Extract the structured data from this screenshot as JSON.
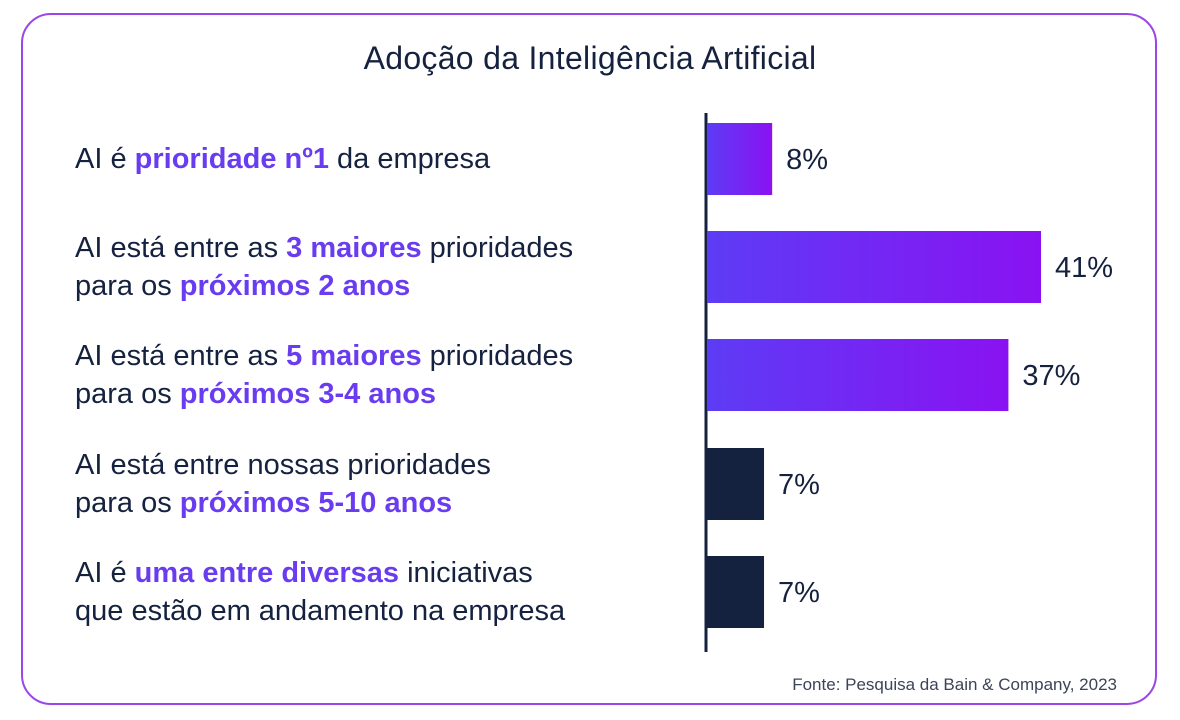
{
  "chart_data": {
    "type": "bar",
    "orientation": "horizontal",
    "title": "Adoção da Inteligência Artificial",
    "categories": [
      [
        {
          "text": "AI é ",
          "bold": false
        },
        {
          "text": "prioridade nº1",
          "bold": true
        },
        {
          "text": " da empresa",
          "bold": false
        }
      ],
      [
        {
          "text": "AI está entre as ",
          "bold": false
        },
        {
          "text": "3 maiores",
          "bold": true
        },
        {
          "text": " prioridades",
          "bold": false
        },
        {
          "text": "\n",
          "bold": false
        },
        {
          "text": "para os ",
          "bold": false
        },
        {
          "text": "próximos 2 anos",
          "bold": true
        }
      ],
      [
        {
          "text": "AI está entre as ",
          "bold": false
        },
        {
          "text": "5 maiores",
          "bold": true
        },
        {
          "text": " prioridades",
          "bold": false
        },
        {
          "text": "\n",
          "bold": false
        },
        {
          "text": "para os ",
          "bold": false
        },
        {
          "text": "próximos 3-4 anos",
          "bold": true
        }
      ],
      [
        {
          "text": "AI está entre nossas prioridades",
          "bold": false
        },
        {
          "text": "\n",
          "bold": false
        },
        {
          "text": "para os ",
          "bold": false
        },
        {
          "text": "próximos 5-10 anos",
          "bold": true
        }
      ],
      [
        {
          "text": "AI é ",
          "bold": false
        },
        {
          "text": "uma entre diversas",
          "bold": true
        },
        {
          "text": " iniciativas",
          "bold": false
        },
        {
          "text": "\n",
          "bold": false
        },
        {
          "text": "que estão em andamento na empresa",
          "bold": false
        }
      ]
    ],
    "values": [
      8,
      41,
      37,
      7,
      7
    ],
    "value_labels": [
      "8%",
      "41%",
      "37%",
      "7%",
      "7%"
    ],
    "bar_colors": [
      "gradient-purple",
      "gradient-purple",
      "gradient-purple",
      "#15223f",
      "#15223f"
    ],
    "xlim": [
      0,
      41
    ],
    "grid": false,
    "legend": "none"
  },
  "colors": {
    "text": "#15223f",
    "highlight": "#6a3cf0",
    "gradient_start": "#5d3cf5",
    "gradient_end": "#8a12f2",
    "dark_bar": "#15223f",
    "border": "#9a46e8"
  },
  "source": "Fonte: Pesquisa da Bain & Company, 2023"
}
